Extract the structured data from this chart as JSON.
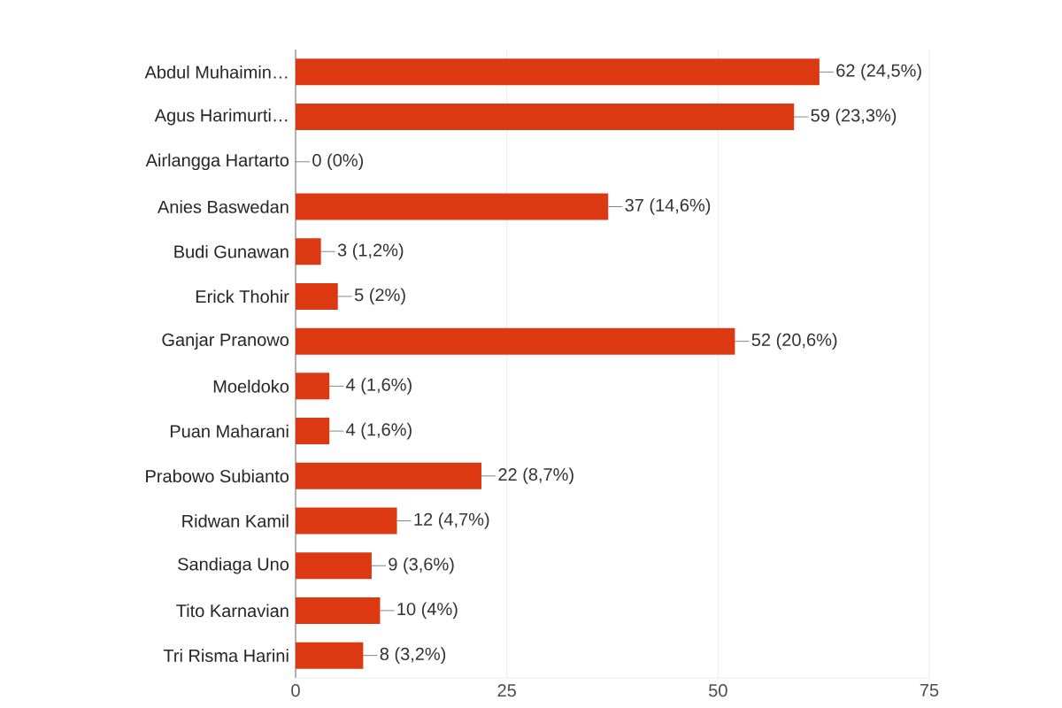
{
  "chart_data": {
    "type": "bar",
    "orientation": "horizontal",
    "color": "#dc3912",
    "categories": [
      "Abdul Muhaimin…",
      "Agus Harimurti…",
      "Airlangga Hartarto",
      "Anies Baswedan",
      "Budi Gunawan",
      "Erick Thohir",
      "Ganjar Pranowo",
      "Moeldoko",
      "Puan Maharani",
      "Prabowo Subianto",
      "Ridwan Kamil",
      "Sandiaga Uno",
      "Tito Karnavian",
      "Tri Risma Harini"
    ],
    "values": [
      62,
      59,
      0,
      37,
      3,
      5,
      52,
      4,
      4,
      22,
      12,
      9,
      10,
      8
    ],
    "value_labels": [
      "62 (24,5%)",
      "59 (23,3%)",
      "0 (0%)",
      "37 (14,6%)",
      "3 (1,2%)",
      "5 (2%)",
      "52 (20,6%)",
      "4 (1,6%)",
      "4 (1,6%)",
      "22 (8,7%)",
      "12 (4,7%)",
      "9 (3,6%)",
      "10 (4%)",
      "8 (3,2%)"
    ],
    "xlim": [
      0,
      75
    ],
    "xticks": [
      0,
      25,
      50,
      75
    ],
    "grid": "x"
  }
}
